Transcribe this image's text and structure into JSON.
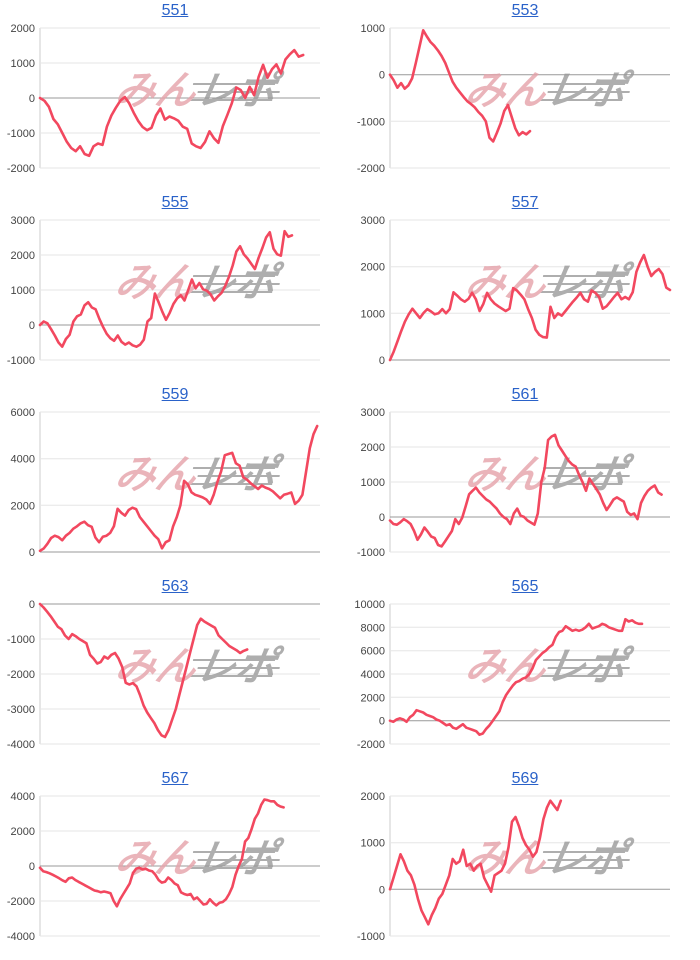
{
  "page": {
    "background": "#ffffff"
  },
  "style": {
    "line_color": "#f2485f",
    "grid_color": "#e6e6e6",
    "zero_line_color": "#999999",
    "axis_line_color": "#cccccc",
    "label_color": "#444444",
    "title_color": "#2a62c9"
  },
  "watermark": {
    "pink_text": "みん",
    "gray_text": "レポ",
    "pink_color": "#e5a2aa",
    "gray_color": "#9a9a9a"
  },
  "charts": [
    {
      "title": "551",
      "chart_data": {
        "type": "line",
        "grid": true,
        "legend": "none",
        "xlabel": "",
        "ylabel": "",
        "ticks": [
          2000,
          1000,
          0,
          -1000,
          -2000
        ],
        "ylim": [
          -2000,
          2000
        ],
        "x_span": 0.94,
        "values": [
          0,
          -80,
          -250,
          -600,
          -750,
          -1000,
          -1250,
          -1430,
          -1520,
          -1380,
          -1600,
          -1650,
          -1380,
          -1300,
          -1340,
          -820,
          -500,
          -280,
          -80,
          30,
          -150,
          -420,
          -650,
          -830,
          -920,
          -850,
          -500,
          -300,
          -620,
          -530,
          -580,
          -650,
          -820,
          -880,
          -1300,
          -1380,
          -1430,
          -1250,
          -950,
          -1150,
          -1280,
          -800,
          -480,
          -150,
          300,
          230,
          0,
          320,
          80,
          600,
          950,
          580,
          820,
          960,
          700,
          1100,
          1250,
          1370,
          1180,
          1230
        ]
      }
    },
    {
      "title": "553",
      "chart_data": {
        "type": "line",
        "grid": true,
        "legend": "none",
        "xlabel": "",
        "ylabel": "",
        "ticks": [
          1000,
          0,
          -1000,
          -2000
        ],
        "ylim": [
          -2000,
          1000
        ],
        "x_span": 0.5,
        "values": [
          0,
          -120,
          -280,
          -180,
          -300,
          -230,
          -80,
          250,
          600,
          950,
          820,
          700,
          620,
          520,
          400,
          250,
          50,
          -150,
          -280,
          -380,
          -480,
          -570,
          -630,
          -700,
          -800,
          -880,
          -1000,
          -1350,
          -1430,
          -1250,
          -1050,
          -780,
          -650,
          -900,
          -1150,
          -1300,
          -1230,
          -1280,
          -1210
        ]
      }
    },
    {
      "title": "555",
      "chart_data": {
        "type": "line",
        "grid": true,
        "legend": "none",
        "xlabel": "",
        "ylabel": "",
        "ticks": [
          3000,
          2000,
          1000,
          0,
          -1000
        ],
        "ylim": [
          -1000,
          3000
        ],
        "x_span": 0.9,
        "values": [
          0,
          100,
          50,
          -120,
          -300,
          -500,
          -620,
          -400,
          -280,
          100,
          250,
          300,
          560,
          650,
          500,
          450,
          180,
          -50,
          -250,
          -380,
          -450,
          -300,
          -480,
          -560,
          -500,
          -580,
          -620,
          -560,
          -420,
          100,
          200,
          900,
          650,
          380,
          150,
          350,
          600,
          760,
          850,
          700,
          1000,
          1300,
          1050,
          1200,
          1020,
          980,
          880,
          700,
          820,
          920,
          1120,
          1380,
          1700,
          2100,
          2250,
          2020,
          1900,
          1750,
          1600,
          1920,
          2200,
          2500,
          2650,
          2180,
          2020,
          1980,
          2680,
          2520,
          2560
        ]
      }
    },
    {
      "title": "557",
      "chart_data": {
        "type": "line",
        "grid": true,
        "legend": "none",
        "xlabel": "",
        "ylabel": "",
        "ticks": [
          3000,
          2000,
          1000,
          0
        ],
        "ylim": [
          0,
          3000
        ],
        "x_span": 1.0,
        "values": [
          0,
          180,
          400,
          620,
          820,
          980,
          1100,
          1000,
          900,
          1010,
          1090,
          1040,
          980,
          1000,
          1090,
          1000,
          1090,
          1450,
          1380,
          1300,
          1250,
          1310,
          1440,
          1300,
          1050,
          1200,
          1440,
          1300,
          1210,
          1150,
          1100,
          1050,
          1100,
          1540,
          1490,
          1400,
          1300,
          1090,
          900,
          650,
          540,
          490,
          480,
          1140,
          900,
          1000,
          950,
          1050,
          1150,
          1250,
          1340,
          1440,
          1300,
          1250,
          1490,
          1440,
          1350,
          1100,
          1150,
          1250,
          1350,
          1440,
          1300,
          1350,
          1300,
          1450,
          1890,
          2090,
          2250,
          2000,
          1800,
          1890,
          1950,
          1840,
          1550,
          1500
        ]
      }
    },
    {
      "title": "559",
      "chart_data": {
        "type": "line",
        "grid": true,
        "legend": "none",
        "xlabel": "",
        "ylabel": "",
        "ticks": [
          6000,
          4000,
          2000,
          0
        ],
        "ylim": [
          0,
          6000
        ],
        "x_span": 0.99,
        "values": [
          50,
          150,
          350,
          600,
          700,
          640,
          500,
          700,
          820,
          1000,
          1100,
          1230,
          1300,
          1150,
          1080,
          620,
          420,
          650,
          700,
          820,
          1100,
          1850,
          1680,
          1560,
          1800,
          1900,
          1840,
          1500,
          1300,
          1100,
          900,
          700,
          550,
          160,
          420,
          500,
          1100,
          1500,
          2000,
          3050,
          2900,
          2560,
          2450,
          2400,
          2340,
          2250,
          2060,
          2450,
          3000,
          3450,
          4150,
          4200,
          4250,
          3800,
          3700,
          3200,
          3100,
          2950,
          2820,
          2700,
          2850,
          2760,
          2700,
          2600,
          2450,
          2300,
          2450,
          2500,
          2550,
          2060,
          2200,
          2450,
          3450,
          4450,
          5050,
          5400
        ]
      }
    },
    {
      "title": "561",
      "chart_data": {
        "type": "line",
        "grid": true,
        "legend": "none",
        "xlabel": "",
        "ylabel": "",
        "ticks": [
          3000,
          2000,
          1000,
          0,
          -1000
        ],
        "ylim": [
          -1000,
          3000
        ],
        "x_span": 0.97,
        "values": [
          -100,
          -200,
          -220,
          -150,
          -60,
          -120,
          -200,
          -400,
          -650,
          -500,
          -300,
          -420,
          -560,
          -600,
          -800,
          -840,
          -700,
          -550,
          -400,
          -60,
          -200,
          -20,
          300,
          650,
          750,
          840,
          700,
          600,
          500,
          440,
          340,
          240,
          100,
          0,
          -60,
          -200,
          100,
          240,
          40,
          0,
          -100,
          -160,
          -220,
          100,
          1000,
          1400,
          2200,
          2300,
          2350,
          2050,
          1900,
          1750,
          1600,
          1500,
          1440,
          1200,
          1000,
          750,
          1100,
          950,
          800,
          650,
          400,
          200,
          340,
          500,
          560,
          500,
          440,
          150,
          60,
          100,
          -60,
          400,
          600,
          750,
          840,
          900,
          700,
          640
        ]
      }
    },
    {
      "title": "563",
      "chart_data": {
        "type": "line",
        "grid": true,
        "legend": "none",
        "xlabel": "",
        "ylabel": "",
        "ticks": [
          0,
          -1000,
          -2000,
          -3000,
          -4000
        ],
        "ylim": [
          -4000,
          0
        ],
        "x_span": 0.74,
        "values": [
          0,
          -100,
          -220,
          -350,
          -500,
          -650,
          -720,
          -900,
          -1000,
          -860,
          -920,
          -1000,
          -1060,
          -1120,
          -1450,
          -1560,
          -1700,
          -1660,
          -1500,
          -1560,
          -1450,
          -1400,
          -1560,
          -1800,
          -2250,
          -2300,
          -2260,
          -2350,
          -2600,
          -2900,
          -3100,
          -3250,
          -3400,
          -3600,
          -3750,
          -3800,
          -3600,
          -3300,
          -3000,
          -2600,
          -2200,
          -1800,
          -1400,
          -1000,
          -600,
          -420,
          -500,
          -560,
          -620,
          -680,
          -900,
          -1000,
          -1100,
          -1200,
          -1260,
          -1320,
          -1400,
          -1340,
          -1300
        ]
      }
    },
    {
      "title": "565",
      "chart_data": {
        "type": "line",
        "grid": true,
        "legend": "none",
        "xlabel": "",
        "ylabel": "",
        "ticks": [
          10000,
          8000,
          6000,
          4000,
          2000,
          0,
          -2000
        ],
        "ylim": [
          -2000,
          10000
        ],
        "x_span": 0.9,
        "values": [
          0,
          -100,
          100,
          200,
          100,
          -100,
          300,
          500,
          900,
          800,
          700,
          500,
          400,
          300,
          100,
          0,
          -200,
          -400,
          -300,
          -600,
          -700,
          -500,
          -300,
          -600,
          -700,
          -800,
          -900,
          -1200,
          -1100,
          -700,
          -400,
          0,
          400,
          800,
          1600,
          2200,
          2600,
          3000,
          3300,
          3400,
          3600,
          3700,
          4000,
          4500,
          5200,
          5500,
          5800,
          6000,
          6300,
          6500,
          7200,
          7600,
          7700,
          8100,
          7900,
          7700,
          7800,
          7700,
          7800,
          8000,
          8300,
          7900,
          8000,
          8100,
          8300,
          8200,
          8000,
          7900,
          7800,
          7700,
          7700,
          8700,
          8500,
          8600,
          8400,
          8300,
          8300
        ]
      }
    },
    {
      "title": "567",
      "chart_data": {
        "type": "line",
        "grid": true,
        "legend": "none",
        "xlabel": "",
        "ylabel": "",
        "ticks": [
          4000,
          2000,
          0,
          -2000,
          -4000
        ],
        "ylim": [
          -4000,
          4000
        ],
        "x_span": 0.87,
        "values": [
          -100,
          -300,
          -350,
          -420,
          -500,
          -600,
          -700,
          -820,
          -900,
          -700,
          -660,
          -800,
          -900,
          -1000,
          -1100,
          -1200,
          -1300,
          -1400,
          -1440,
          -1500,
          -1460,
          -1500,
          -1560,
          -2000,
          -2300,
          -1900,
          -1600,
          -1300,
          -1000,
          -400,
          -150,
          -100,
          -200,
          -160,
          -260,
          -300,
          -500,
          -800,
          -950,
          -900,
          -660,
          -800,
          -1000,
          -1100,
          -1500,
          -1600,
          -1660,
          -1600,
          -1900,
          -1800,
          -2000,
          -2200,
          -2160,
          -1900,
          -2100,
          -2250,
          -2100,
          -2060,
          -1900,
          -1600,
          -1200,
          -500,
          0,
          400,
          1400,
          1600,
          2100,
          2700,
          3000,
          3500,
          3800,
          3760,
          3700,
          3700,
          3500,
          3400,
          3350
        ]
      }
    },
    {
      "title": "569",
      "chart_data": {
        "type": "line",
        "grid": true,
        "legend": "none",
        "xlabel": "",
        "ylabel": "",
        "ticks": [
          2000,
          1000,
          0,
          -1000
        ],
        "ylim": [
          -1000,
          2000
        ],
        "x_span": 0.61,
        "values": [
          0,
          250,
          500,
          750,
          600,
          400,
          300,
          100,
          -200,
          -450,
          -600,
          -750,
          -550,
          -400,
          -200,
          -100,
          100,
          300,
          650,
          550,
          600,
          850,
          500,
          550,
          400,
          500,
          550,
          250,
          100,
          -50,
          300,
          350,
          400,
          550,
          900,
          1450,
          1550,
          1350,
          1100,
          950,
          850,
          700,
          800,
          1100,
          1500,
          1750,
          1900,
          1800,
          1700,
          1900
        ]
      }
    }
  ]
}
